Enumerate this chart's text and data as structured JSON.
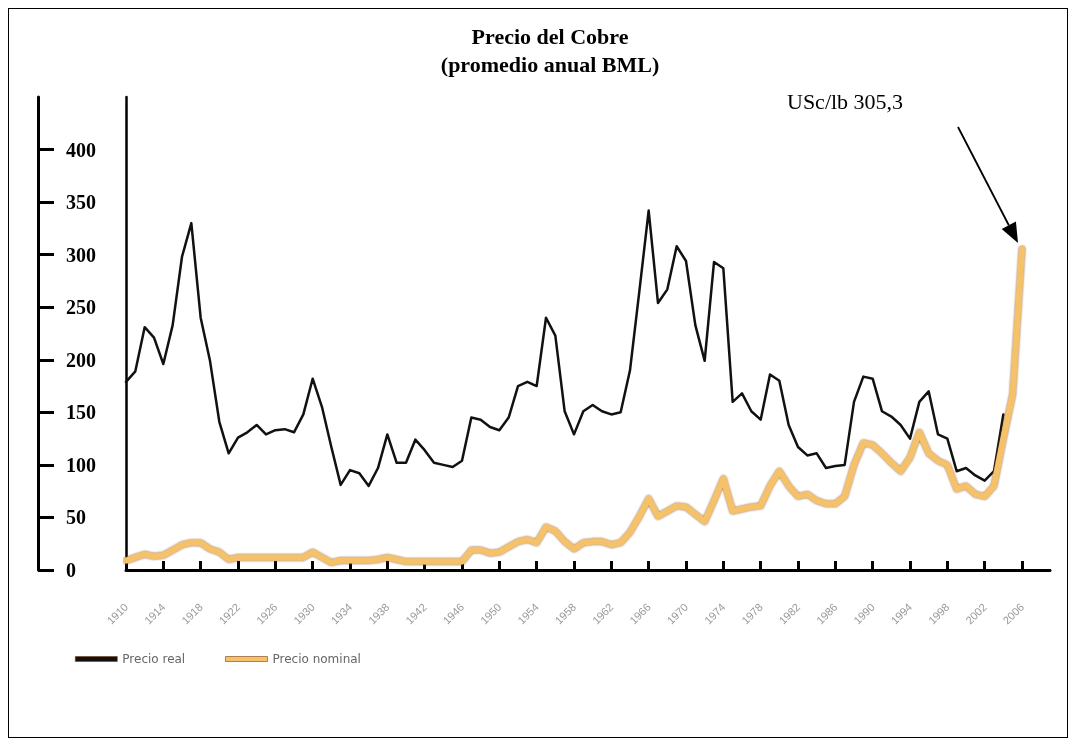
{
  "chart_data": {
    "type": "line",
    "title": "Precio del Cobre",
    "subtitle": "(promedio anual BML)",
    "x": [
      1910,
      1911,
      1912,
      1913,
      1914,
      1915,
      1916,
      1917,
      1918,
      1919,
      1920,
      1921,
      1922,
      1923,
      1924,
      1925,
      1926,
      1927,
      1928,
      1929,
      1930,
      1931,
      1932,
      1933,
      1934,
      1935,
      1936,
      1937,
      1938,
      1939,
      1940,
      1941,
      1942,
      1943,
      1944,
      1945,
      1946,
      1947,
      1948,
      1949,
      1950,
      1951,
      1952,
      1953,
      1954,
      1955,
      1956,
      1957,
      1958,
      1959,
      1960,
      1961,
      1962,
      1963,
      1964,
      1965,
      1966,
      1967,
      1968,
      1969,
      1970,
      1971,
      1972,
      1973,
      1974,
      1975,
      1976,
      1977,
      1978,
      1979,
      1980,
      1981,
      1982,
      1983,
      1984,
      1985,
      1986,
      1987,
      1988,
      1989,
      1990,
      1991,
      1992,
      1993,
      1994,
      1995,
      1996,
      1997,
      1998,
      1999,
      2000,
      2001,
      2002,
      2003,
      2004,
      2005,
      2006
    ],
    "series": [
      {
        "name": "Precio real",
        "color": "#111111",
        "values": [
          179,
          189,
          231,
          221,
          196,
          233,
          298,
          330,
          240,
          199,
          141,
          111,
          126,
          131,
          138,
          129,
          133,
          134,
          131,
          148,
          182,
          155,
          117,
          81,
          95,
          92,
          80,
          97,
          129,
          102,
          102,
          124,
          114,
          102,
          100,
          98,
          104,
          145,
          143,
          136,
          133,
          145,
          175,
          179,
          175,
          240,
          223,
          151,
          129,
          151,
          157,
          151,
          148,
          150,
          190,
          265,
          342,
          254,
          267,
          308,
          294,
          233,
          199,
          293,
          287,
          160,
          168,
          151,
          143,
          186,
          180,
          138,
          117,
          109,
          111,
          97,
          99,
          100,
          160,
          184,
          182,
          151,
          146,
          138,
          125,
          160,
          170,
          129,
          125,
          94,
          97,
          90,
          85,
          94,
          148,
          null,
          null
        ]
      },
      {
        "name": "Precio nominal",
        "color": "#f5c26b",
        "values": [
          9,
          12,
          15,
          13,
          14,
          19,
          24,
          26,
          26,
          20,
          17,
          10,
          12,
          12,
          12,
          12,
          12,
          12,
          12,
          12,
          17,
          12,
          7,
          9,
          9,
          9,
          9,
          10,
          12,
          10,
          8,
          8,
          8,
          8,
          8,
          8,
          8,
          19,
          19,
          16,
          17,
          22,
          27,
          29,
          26,
          41,
          37,
          27,
          20,
          26,
          27,
          27,
          24,
          26,
          36,
          51,
          68,
          51,
          56,
          61,
          60,
          53,
          46,
          66,
          87,
          56,
          58,
          60,
          61,
          80,
          94,
          80,
          70,
          72,
          66,
          63,
          63,
          70,
          100,
          121,
          119,
          111,
          102,
          94,
          107,
          131,
          111,
          104,
          100,
          77,
          80,
          72,
          70,
          80,
          125,
          167,
          305.3
        ]
      }
    ],
    "xlim": [
      1910,
      2009
    ],
    "xticks": [
      1910,
      1914,
      1918,
      1922,
      1926,
      1930,
      1934,
      1938,
      1942,
      1946,
      1950,
      1954,
      1958,
      1962,
      1966,
      1970,
      1974,
      1978,
      1982,
      1986,
      1990,
      1994,
      1998,
      2002,
      2006
    ],
    "ylim": [
      0,
      450
    ],
    "yticks": [
      0,
      50,
      100,
      150,
      200,
      250,
      300,
      350,
      400
    ],
    "annotations": [
      "USc/lb 305,3"
    ],
    "legend": "bottom",
    "marker": "none",
    "line_style": "solid",
    "grid": false
  }
}
